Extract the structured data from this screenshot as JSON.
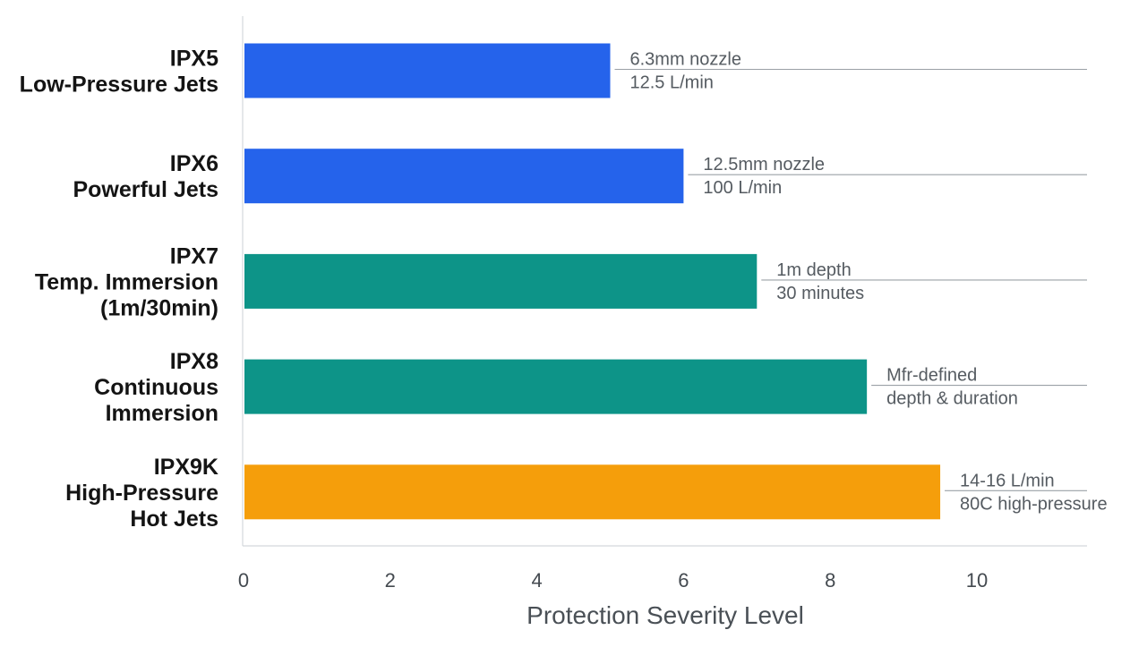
{
  "chart_data": {
    "type": "bar",
    "orientation": "horizontal",
    "categories": [
      [
        "IPX5",
        "Low-Pressure Jets"
      ],
      [
        "IPX6",
        "Powerful Jets"
      ],
      [
        "IPX7",
        "Temp. Immersion",
        "(1m/30min)"
      ],
      [
        "IPX8",
        "Continuous",
        "Immersion"
      ],
      [
        "IPX9K",
        "High-Pressure",
        "Hot Jets"
      ]
    ],
    "values": [
      5,
      6,
      7,
      8.5,
      9.5
    ],
    "colors": [
      "#2563eb",
      "#2563eb",
      "#0d9488",
      "#0d9488",
      "#f59e0b"
    ],
    "annotations": [
      [
        "6.3mm nozzle",
        "12.5 L/min"
      ],
      [
        "12.5mm nozzle",
        "100 L/min"
      ],
      [
        "1m depth",
        "30 minutes"
      ],
      [
        "Mfr-defined",
        "depth & duration"
      ],
      [
        "14-16 L/min",
        "80C high-pressure"
      ]
    ],
    "xlabel": "Protection Severity Level",
    "xticks": [
      0,
      2,
      4,
      6,
      8,
      10
    ],
    "xlim": [
      0,
      11.5
    ],
    "grid": false,
    "legend": "none"
  }
}
